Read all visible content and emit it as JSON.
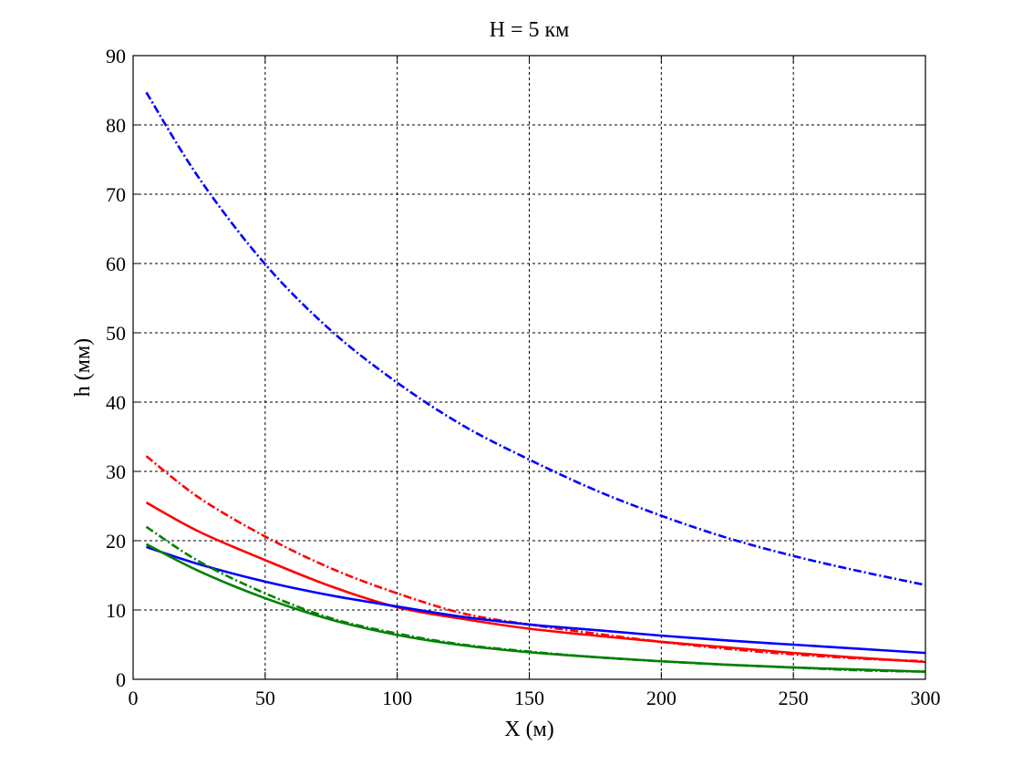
{
  "chart_data": {
    "type": "line",
    "title": "H = 5 км",
    "xlabel": "X (м)",
    "ylabel": "h (мм)",
    "xlim": [
      0,
      300
    ],
    "ylim": [
      0,
      90
    ],
    "xticks": [
      0,
      50,
      100,
      150,
      200,
      250,
      300
    ],
    "yticks": [
      0,
      10,
      20,
      30,
      40,
      50,
      60,
      70,
      80,
      90
    ],
    "grid": true,
    "x": [
      5,
      25,
      50,
      75,
      100,
      125,
      150,
      175,
      200,
      225,
      250,
      275,
      300
    ],
    "series": [
      {
        "color": "#0000ff",
        "style": "dashdot",
        "values": [
          84.7,
          72.3,
          59.9,
          50.3,
          42.8,
          36.6,
          31.7,
          27.3,
          23.6,
          20.4,
          17.8,
          15.6,
          13.6
        ]
      },
      {
        "color": "#ff0000",
        "style": "dashdot",
        "values": [
          32.2,
          26.2,
          20.6,
          16.0,
          12.4,
          9.5,
          7.9,
          6.6,
          5.4,
          4.4,
          3.6,
          3.0,
          2.6
        ]
      },
      {
        "color": "#ff0000",
        "style": "solid",
        "values": [
          25.5,
          21.3,
          17.2,
          13.4,
          10.4,
          8.7,
          7.3,
          6.3,
          5.4,
          4.6,
          3.8,
          3.1,
          2.5
        ]
      },
      {
        "color": "#0000ff",
        "style": "solid",
        "values": [
          19.1,
          16.6,
          14.1,
          12.1,
          10.5,
          9.0,
          7.9,
          7.1,
          6.3,
          5.6,
          5.0,
          4.4,
          3.8
        ]
      },
      {
        "color": "#008000",
        "style": "dashdot",
        "values": [
          22.0,
          17.0,
          12.4,
          8.8,
          6.6,
          5.0,
          4.0,
          3.2,
          2.6,
          2.1,
          1.7,
          1.3,
          1.1
        ]
      },
      {
        "color": "#008000",
        "style": "solid",
        "values": [
          19.5,
          15.6,
          11.7,
          8.6,
          6.4,
          4.9,
          3.9,
          3.2,
          2.6,
          2.1,
          1.7,
          1.4,
          1.1
        ]
      }
    ]
  }
}
